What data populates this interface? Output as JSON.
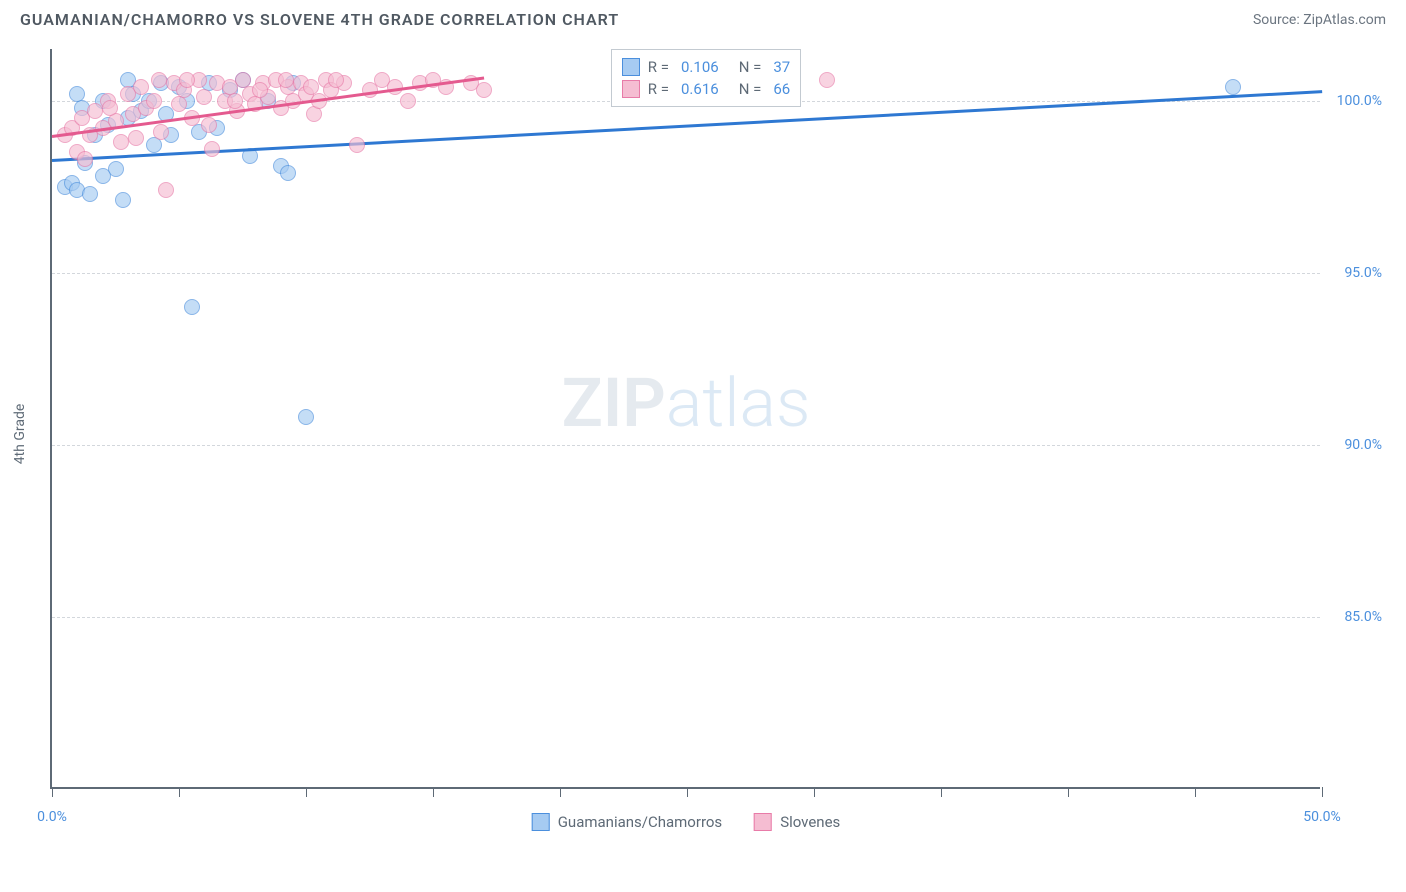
{
  "header": {
    "title": "GUAMANIAN/CHAMORRO VS SLOVENE 4TH GRADE CORRELATION CHART",
    "source": "Source: ZipAtlas.com"
  },
  "watermark": {
    "zip": "ZIP",
    "atlas": "atlas"
  },
  "chart": {
    "type": "scatter",
    "ylabel": "4th Grade",
    "xlim": [
      0,
      50
    ],
    "ylim": [
      80,
      101.5
    ],
    "xticks": [
      0,
      5,
      10,
      15,
      20,
      25,
      30,
      35,
      40,
      45,
      50
    ],
    "xtick_labels": {
      "0": "0.0%",
      "50": "50.0%"
    },
    "yticks": [
      85,
      90,
      95,
      100
    ],
    "ytick_labels": {
      "85": "85.0%",
      "90": "90.0%",
      "95": "95.0%",
      "100": "100.0%"
    },
    "grid_color": "#d3d7dc",
    "axis_color": "#5e6a76",
    "background_color": "#ffffff",
    "marker_size": 16,
    "series": [
      {
        "key": "guamanians",
        "label": "Guamanians/Chamorros",
        "color_fill": "#a6cbf2",
        "color_stroke": "#4b8fdd",
        "r_value": "0.106",
        "n_value": "37",
        "trend": {
          "x1": 0,
          "y1": 98.3,
          "x2": 50,
          "y2": 100.3,
          "color": "#2e78d2",
          "width": 3
        },
        "points": [
          [
            0.5,
            97.5
          ],
          [
            0.8,
            97.6
          ],
          [
            1.0,
            97.4
          ],
          [
            1.3,
            98.2
          ],
          [
            1.5,
            97.3
          ],
          [
            1.7,
            99.0
          ],
          [
            2.0,
            100.0
          ],
          [
            2.2,
            99.3
          ],
          [
            2.5,
            98.0
          ],
          [
            2.8,
            97.1
          ],
          [
            3.0,
            99.5
          ],
          [
            3.2,
            100.2
          ],
          [
            3.5,
            99.7
          ],
          [
            3.8,
            100.0
          ],
          [
            4.0,
            98.7
          ],
          [
            4.3,
            100.5
          ],
          [
            4.7,
            99.0
          ],
          [
            5.0,
            100.4
          ],
          [
            5.3,
            100.0
          ],
          [
            5.8,
            99.1
          ],
          [
            6.2,
            100.5
          ],
          [
            6.5,
            99.2
          ],
          [
            7.0,
            100.3
          ],
          [
            7.5,
            100.6
          ],
          [
            7.8,
            98.4
          ],
          [
            8.5,
            100.0
          ],
          [
            9.0,
            98.1
          ],
          [
            9.3,
            97.9
          ],
          [
            9.5,
            100.5
          ],
          [
            10.0,
            90.8
          ],
          [
            5.5,
            94.0
          ],
          [
            1.0,
            100.2
          ],
          [
            2.0,
            97.8
          ],
          [
            3.0,
            100.6
          ],
          [
            4.5,
            99.6
          ],
          [
            46.5,
            100.4
          ],
          [
            1.2,
            99.8
          ]
        ]
      },
      {
        "key": "slovenes",
        "label": "Slovenes",
        "color_fill": "#f5bdd2",
        "color_stroke": "#e87ba8",
        "r_value": "0.616",
        "n_value": "66",
        "trend": {
          "x1": 0,
          "y1": 99.0,
          "x2": 17,
          "y2": 100.7,
          "color": "#e45a8f",
          "width": 3
        },
        "points": [
          [
            0.5,
            99.0
          ],
          [
            0.8,
            99.2
          ],
          [
            1.0,
            98.5
          ],
          [
            1.2,
            99.5
          ],
          [
            1.5,
            99.0
          ],
          [
            1.7,
            99.7
          ],
          [
            2.0,
            99.2
          ],
          [
            2.2,
            100.0
          ],
          [
            2.5,
            99.4
          ],
          [
            2.7,
            98.8
          ],
          [
            3.0,
            100.2
          ],
          [
            3.2,
            99.6
          ],
          [
            3.5,
            100.4
          ],
          [
            3.7,
            99.8
          ],
          [
            4.0,
            100.0
          ],
          [
            4.3,
            99.1
          ],
          [
            4.5,
            97.4
          ],
          [
            4.8,
            100.5
          ],
          [
            5.0,
            99.9
          ],
          [
            5.2,
            100.3
          ],
          [
            5.5,
            99.5
          ],
          [
            5.8,
            100.6
          ],
          [
            6.0,
            100.1
          ],
          [
            6.2,
            99.3
          ],
          [
            6.5,
            100.5
          ],
          [
            6.8,
            100.0
          ],
          [
            7.0,
            100.4
          ],
          [
            7.3,
            99.7
          ],
          [
            7.5,
            100.6
          ],
          [
            7.8,
            100.2
          ],
          [
            8.0,
            99.9
          ],
          [
            8.3,
            100.5
          ],
          [
            8.5,
            100.1
          ],
          [
            8.8,
            100.6
          ],
          [
            9.0,
            99.8
          ],
          [
            9.3,
            100.4
          ],
          [
            9.5,
            100.0
          ],
          [
            9.8,
            100.5
          ],
          [
            10.0,
            100.2
          ],
          [
            10.3,
            99.6
          ],
          [
            10.5,
            100.0
          ],
          [
            10.8,
            100.6
          ],
          [
            11.0,
            100.3
          ],
          [
            11.5,
            100.5
          ],
          [
            12.0,
            98.7
          ],
          [
            12.5,
            100.3
          ],
          [
            13.0,
            100.6
          ],
          [
            13.5,
            100.4
          ],
          [
            14.0,
            100.0
          ],
          [
            14.5,
            100.5
          ],
          [
            15.0,
            100.6
          ],
          [
            15.5,
            100.4
          ],
          [
            16.5,
            100.5
          ],
          [
            17.0,
            100.3
          ],
          [
            1.3,
            98.3
          ],
          [
            2.3,
            99.8
          ],
          [
            3.3,
            98.9
          ],
          [
            4.2,
            100.6
          ],
          [
            5.3,
            100.6
          ],
          [
            6.3,
            98.6
          ],
          [
            7.2,
            100.0
          ],
          [
            8.2,
            100.3
          ],
          [
            9.2,
            100.6
          ],
          [
            10.2,
            100.4
          ],
          [
            11.2,
            100.6
          ],
          [
            30.5,
            100.6
          ]
        ]
      }
    ],
    "legend_stats_pos": {
      "left_pct": 44,
      "top_pct": 0
    }
  }
}
